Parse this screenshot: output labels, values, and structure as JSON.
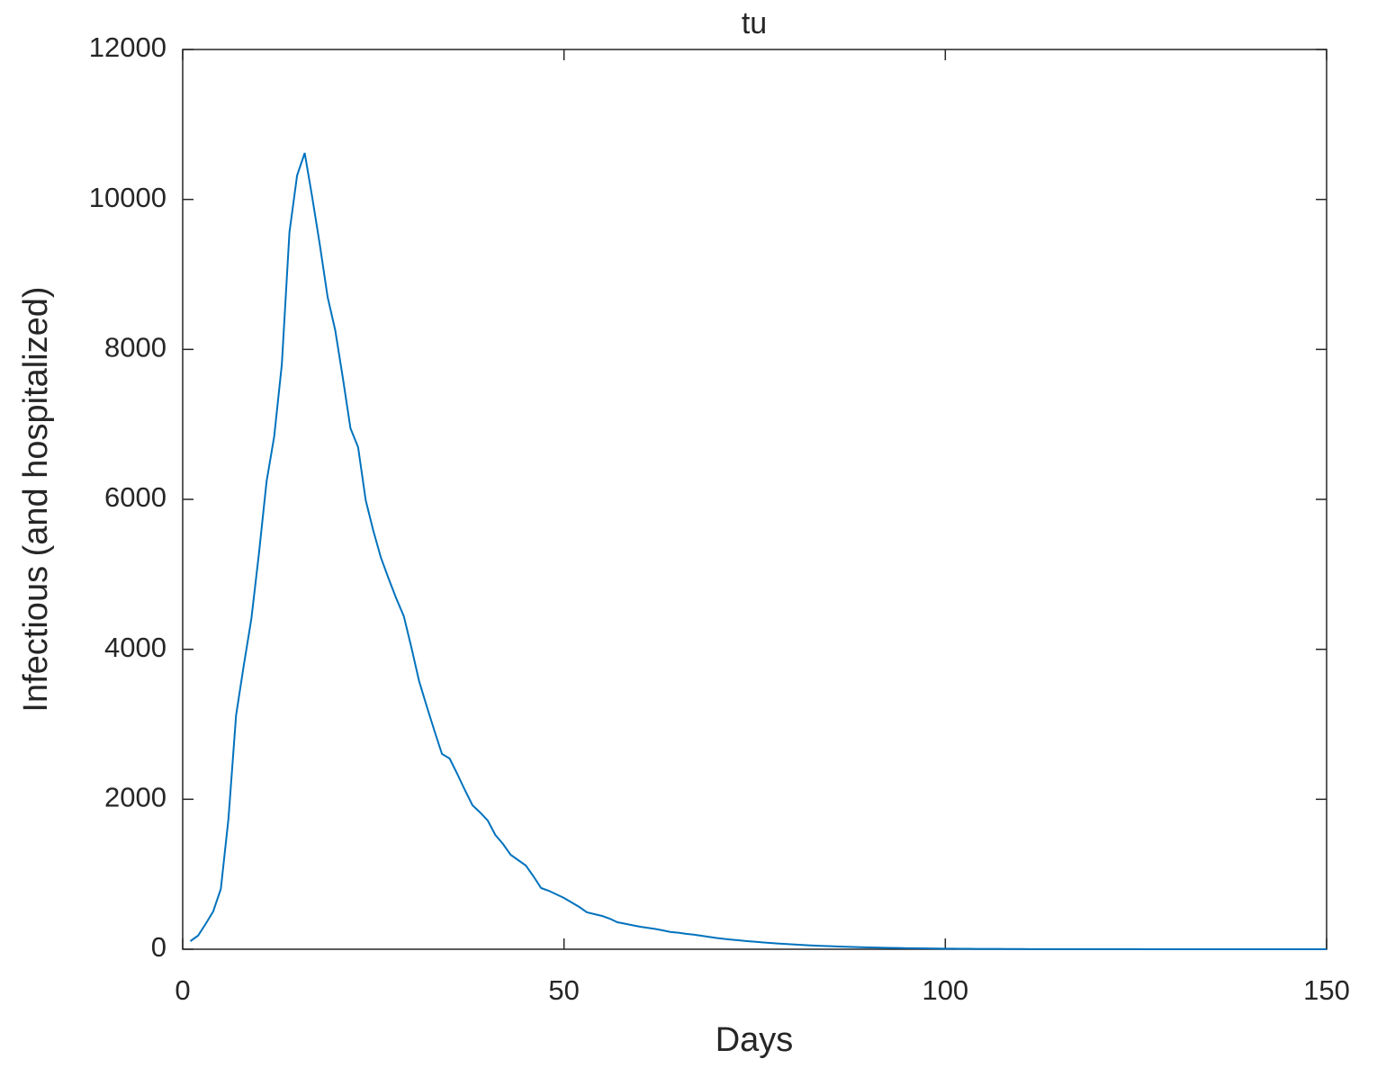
{
  "chart_data": {
    "type": "line",
    "title": "tu",
    "x_label": "Days",
    "y_label": "Infectious (and hospitalized)",
    "x": [
      1,
      2,
      3,
      4,
      5,
      6,
      7,
      8,
      9,
      10,
      11,
      12,
      13,
      14,
      15,
      16,
      17,
      18,
      19,
      20,
      21,
      22,
      23,
      24,
      25,
      26,
      27,
      28,
      29,
      30,
      31,
      32,
      33,
      34,
      35,
      36,
      37,
      38,
      39,
      40,
      41,
      42,
      43,
      44,
      45,
      46,
      47,
      48,
      49,
      50,
      51,
      52,
      53,
      54,
      55,
      56,
      57,
      58,
      59,
      60,
      61,
      62,
      63,
      64,
      65,
      66,
      67,
      68,
      69,
      70,
      71,
      72,
      73,
      74,
      75,
      76,
      77,
      78,
      79,
      80,
      81,
      82,
      83,
      84,
      85,
      86,
      87,
      88,
      89,
      90,
      91,
      92,
      93,
      94,
      95,
      96,
      97,
      98,
      99,
      100,
      101,
      102,
      103,
      104,
      105,
      106,
      107,
      108,
      109,
      110,
      111,
      112,
      113,
      114,
      115,
      116,
      117,
      118,
      119,
      120,
      121,
      122,
      123,
      124,
      125,
      126,
      127,
      128,
      129,
      130,
      131,
      132,
      133,
      134,
      135,
      136,
      137,
      138,
      139,
      140,
      141,
      142,
      143,
      144,
      145,
      146,
      147,
      148,
      149,
      150
    ],
    "values": [
      108,
      180,
      336,
      504,
      804,
      1740,
      3120,
      3780,
      4404,
      5280,
      6240,
      6840,
      7800,
      9564,
      10320,
      10620,
      10020,
      9384,
      8700,
      8256,
      7620,
      6948,
      6696,
      5988,
      5580,
      5220,
      4944,
      4680,
      4440,
      4020,
      3576,
      3240,
      2916,
      2604,
      2544,
      2340,
      2124,
      1920,
      1824,
      1716,
      1524,
      1404,
      1260,
      1188,
      1116,
      972,
      816,
      780,
      732,
      684,
      624,
      564,
      492,
      468,
      444,
      408,
      360,
      340,
      320,
      300,
      285,
      270,
      250,
      230,
      220,
      205,
      195,
      180,
      165,
      150,
      138,
      128,
      118,
      108,
      100,
      92,
      84,
      76,
      70,
      64,
      58,
      53,
      48,
      44,
      40,
      36,
      33,
      30,
      27,
      24,
      22,
      20,
      18,
      16,
      14,
      13,
      12,
      10,
      9,
      8,
      7,
      6,
      6,
      5,
      5,
      4,
      4,
      3,
      3,
      3,
      2,
      2,
      2,
      2,
      2,
      1,
      1,
      1,
      1,
      1,
      1,
      1,
      1,
      1,
      1,
      0,
      0,
      0,
      0,
      0,
      0,
      0,
      0,
      0,
      0,
      0,
      0,
      0,
      0,
      0,
      0,
      0,
      0,
      0,
      0,
      0,
      0,
      0,
      0,
      0
    ],
    "color": "#0072bd",
    "xlim": [
      0,
      150
    ],
    "xticks": [
      0,
      50,
      100,
      150
    ],
    "ylim": [
      0,
      12000
    ],
    "yticks": [
      0,
      2000,
      4000,
      6000,
      8000,
      10000,
      12000
    ]
  }
}
